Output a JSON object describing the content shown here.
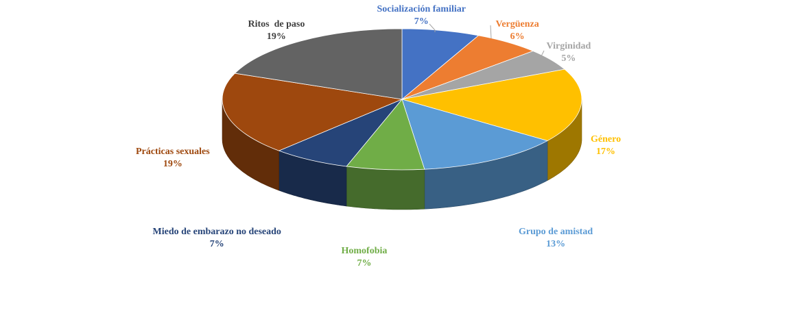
{
  "chart_data": {
    "type": "pie",
    "title": "",
    "slices": [
      {
        "label": "Socialización familiar",
        "value": 7,
        "value_label": "7%",
        "color": "#4472C4",
        "label_color": "#4472C4"
      },
      {
        "label": "Vergüenza",
        "value": 6,
        "value_label": "6%",
        "color": "#ED7D31",
        "label_color": "#ED7D31"
      },
      {
        "label": "Virginidad",
        "value": 5,
        "value_label": "5%",
        "color": "#A5A5A5",
        "label_color": "#A5A5A5"
      },
      {
        "label": "Género",
        "value": 17,
        "value_label": "17%",
        "color": "#FFC000",
        "label_color": "#FFC000"
      },
      {
        "label": "Grupo de amistad",
        "value": 13,
        "value_label": "13%",
        "color": "#5B9BD5",
        "label_color": "#5B9BD5"
      },
      {
        "label": "Homofobia",
        "value": 7,
        "value_label": "7%",
        "color": "#70AD47",
        "label_color": "#70AD47"
      },
      {
        "label": "Miedo de embarazo no deseado",
        "value": 7,
        "value_label": "7%",
        "color": "#264478",
        "label_color": "#264478"
      },
      {
        "label": "Prácticas sexuales",
        "value": 19,
        "value_label": "19%",
        "color": "#9E480E",
        "label_color": "#9E480E"
      },
      {
        "label": "Ritos  de paso",
        "value": 19,
        "value_label": "19%",
        "color": "#636363",
        "label_color": "#404040"
      }
    ],
    "style": "3d-perspective",
    "legend": "none",
    "start_angle": "12 o'clock, clockwise"
  }
}
